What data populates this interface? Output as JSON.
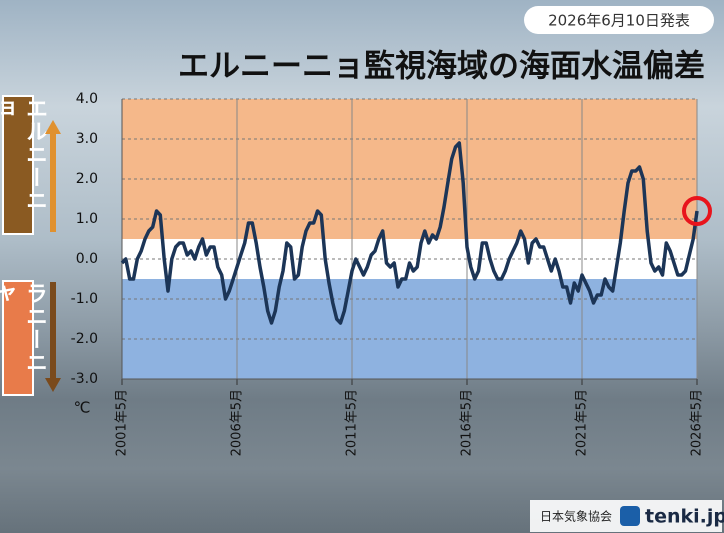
{
  "chart_data": {
    "type": "line",
    "title": "エルニーニョ監視海域の海面水温偏差",
    "subtitle": "2026年6月10日発表",
    "upper_label": "エルニーニョ",
    "lower_label": "ラニーニャ",
    "y_unit": "℃",
    "credit": "日本気象協会",
    "brand": "tenki.jp",
    "ylim": [
      -3,
      4
    ],
    "yticks": [
      {
        "value": 4,
        "label": "4.0"
      },
      {
        "value": 3,
        "label": "3.0"
      },
      {
        "value": 2,
        "label": "2.0"
      },
      {
        "value": 1,
        "label": "1.0"
      },
      {
        "value": 0,
        "label": "0.0"
      },
      {
        "value": -1,
        "label": "-1.0"
      },
      {
        "value": -2,
        "label": "-2.0"
      },
      {
        "value": -3,
        "label": "-3.0"
      }
    ],
    "xlim": [
      "2001-05",
      "2026-05"
    ],
    "xticks": [
      {
        "value": "2001-05",
        "label": "2001年5月"
      },
      {
        "value": "2006-05",
        "label": "2006年5月"
      },
      {
        "value": "2011-05",
        "label": "2011年5月"
      },
      {
        "value": "2016-05",
        "label": "2016年5月"
      },
      {
        "value": "2021-05",
        "label": "2021年5月"
      },
      {
        "value": "2026-05",
        "label": "2026年5月"
      }
    ],
    "grid": true,
    "bands": [
      {
        "from": 0.5,
        "to": 4,
        "color": "#f5b88a"
      },
      {
        "from": -0.5,
        "to": 0.5,
        "color": "#ffffff"
      },
      {
        "from": -3,
        "to": -0.5,
        "color": "#8eb2e0"
      }
    ],
    "highlight_last": true,
    "highlight_color": "#e8141c",
    "series": [
      {
        "color": "#1c3557",
        "x": [
          "2001-05",
          "2001-07",
          "2001-09",
          "2001-11",
          "2002-01",
          "2002-03",
          "2002-05",
          "2002-07",
          "2002-09",
          "2002-11",
          "2003-01",
          "2003-03",
          "2003-05",
          "2003-07",
          "2003-09",
          "2003-11",
          "2004-01",
          "2004-03",
          "2004-05",
          "2004-07",
          "2004-09",
          "2004-11",
          "2005-01",
          "2005-03",
          "2005-05",
          "2005-07",
          "2005-09",
          "2005-11",
          "2006-01",
          "2006-03",
          "2006-05",
          "2006-07",
          "2006-09",
          "2006-11",
          "2007-01",
          "2007-03",
          "2007-05",
          "2007-07",
          "2007-09",
          "2007-11",
          "2008-01",
          "2008-03",
          "2008-05",
          "2008-07",
          "2008-09",
          "2008-11",
          "2009-01",
          "2009-03",
          "2009-05",
          "2009-07",
          "2009-09",
          "2009-11",
          "2010-01",
          "2010-03",
          "2010-05",
          "2010-07",
          "2010-09",
          "2010-11",
          "2011-01",
          "2011-03",
          "2011-05",
          "2011-07",
          "2011-09",
          "2011-11",
          "2012-01",
          "2012-03",
          "2012-05",
          "2012-07",
          "2012-09",
          "2012-11",
          "2013-01",
          "2013-03",
          "2013-05",
          "2013-07",
          "2013-09",
          "2013-11",
          "2014-01",
          "2014-03",
          "2014-05",
          "2014-07",
          "2014-09",
          "2014-11",
          "2015-01",
          "2015-03",
          "2015-05",
          "2015-07",
          "2015-09",
          "2015-11",
          "2016-01",
          "2016-03",
          "2016-05",
          "2016-07",
          "2016-09",
          "2016-11",
          "2017-01",
          "2017-03",
          "2017-05",
          "2017-07",
          "2017-09",
          "2017-11",
          "2018-01",
          "2018-03",
          "2018-05",
          "2018-07",
          "2018-09",
          "2018-11",
          "2019-01",
          "2019-03",
          "2019-05",
          "2019-07",
          "2019-09",
          "2019-11",
          "2020-01",
          "2020-03",
          "2020-05",
          "2020-07",
          "2020-09",
          "2020-11",
          "2021-01",
          "2021-03",
          "2021-05",
          "2021-07",
          "2021-09",
          "2021-11",
          "2022-01",
          "2022-03",
          "2022-05",
          "2022-07",
          "2022-09",
          "2022-11",
          "2023-01",
          "2023-03",
          "2023-05",
          "2023-07",
          "2023-09",
          "2023-11",
          "2024-01",
          "2024-03",
          "2024-05",
          "2024-07",
          "2024-09",
          "2024-11",
          "2025-01",
          "2025-03",
          "2025-05",
          "2025-07",
          "2025-09",
          "2025-11",
          "2026-01",
          "2026-03",
          "2026-05"
        ],
        "values": [
          -0.1,
          0.0,
          -0.5,
          -0.5,
          0.0,
          0.2,
          0.5,
          0.7,
          0.8,
          1.2,
          1.1,
          0.0,
          -0.8,
          0.0,
          0.3,
          0.4,
          0.4,
          0.1,
          0.2,
          0.0,
          0.3,
          0.5,
          0.1,
          0.3,
          0.3,
          -0.2,
          -0.4,
          -1.0,
          -0.8,
          -0.5,
          -0.2,
          0.1,
          0.4,
          0.9,
          0.9,
          0.4,
          -0.2,
          -0.7,
          -1.3,
          -1.6,
          -1.3,
          -0.7,
          -0.3,
          0.4,
          0.3,
          -0.5,
          -0.4,
          0.3,
          0.7,
          0.9,
          0.9,
          1.2,
          1.1,
          0.0,
          -0.6,
          -1.1,
          -1.5,
          -1.6,
          -1.3,
          -0.8,
          -0.3,
          0.0,
          -0.2,
          -0.4,
          -0.2,
          0.1,
          0.2,
          0.5,
          0.7,
          -0.1,
          -0.2,
          -0.1,
          -0.7,
          -0.5,
          -0.5,
          -0.1,
          -0.3,
          -0.2,
          0.4,
          0.7,
          0.4,
          0.6,
          0.5,
          0.8,
          1.3,
          1.9,
          2.5,
          2.8,
          2.9,
          1.9,
          0.3,
          -0.2,
          -0.5,
          -0.3,
          0.4,
          0.4,
          0.0,
          -0.3,
          -0.5,
          -0.5,
          -0.3,
          0.0,
          0.2,
          0.4,
          0.7,
          0.5,
          -0.1,
          0.4,
          0.5,
          0.3,
          0.3,
          0.0,
          -0.3,
          0.0,
          -0.3,
          -0.7,
          -0.7,
          -1.1,
          -0.6,
          -0.8,
          -0.4,
          -0.6,
          -0.8,
          -1.1,
          -0.9,
          -0.9,
          -0.5,
          -0.7,
          -0.8,
          -0.2,
          0.4,
          1.2,
          1.9,
          2.2,
          2.2,
          2.3,
          2.0,
          0.7,
          -0.1,
          -0.3,
          -0.2,
          -0.4,
          0.4,
          0.2,
          -0.1,
          -0.4,
          -0.4,
          -0.3,
          0.1,
          0.5,
          1.2
        ]
      }
    ]
  }
}
